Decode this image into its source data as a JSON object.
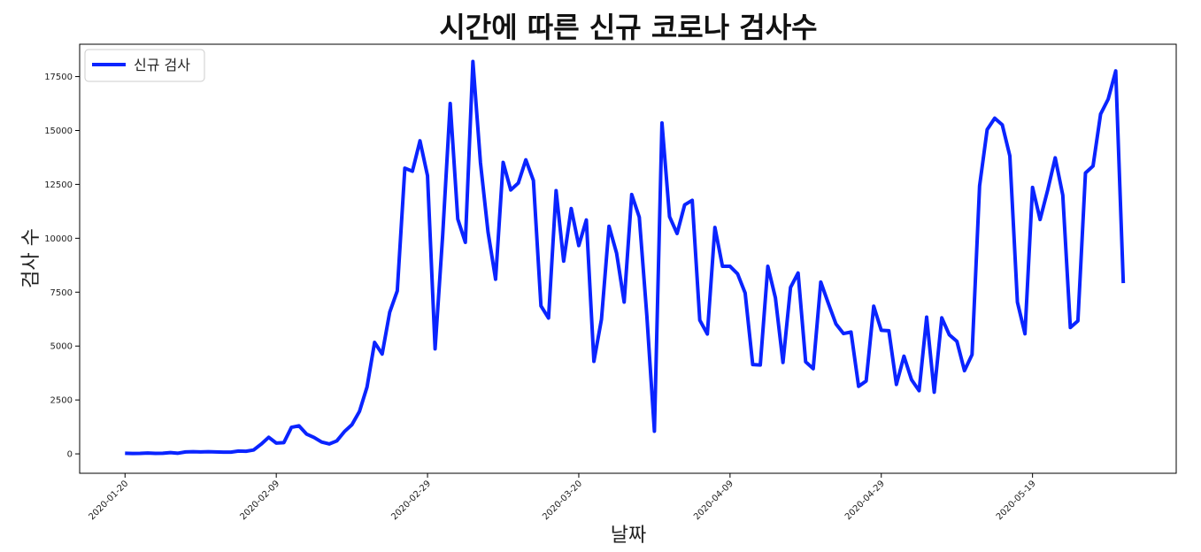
{
  "chart_data": {
    "type": "line",
    "title": "시간에 따른 신규 코로나 검사수",
    "xlabel": "날짜",
    "ylabel": "검사 수",
    "grid": false,
    "legend_position": "top-left",
    "x_start_date": "2020-01-20",
    "x_tick_labels": [
      "2020-01-20",
      "2020-02-09",
      "2020-02-29",
      "2020-03-20",
      "2020-04-09",
      "2020-04-29",
      "2020-05-19"
    ],
    "xlim": [
      "2020-01-14",
      "2020-06-07"
    ],
    "ylim": [
      -900,
      19000
    ],
    "y_ticks": [
      0,
      2500,
      5000,
      7500,
      10000,
      12500,
      15000,
      17500
    ],
    "series": [
      {
        "name": "신규 검사",
        "color": "#0a24ff",
        "values": [
          30,
          20,
          25,
          40,
          25,
          30,
          60,
          30,
          90,
          100,
          90,
          100,
          90,
          80,
          80,
          130,
          120,
          180,
          450,
          770,
          500,
          520,
          1230,
          1300,
          920,
          760,
          550,
          460,
          600,
          1030,
          1350,
          1970,
          3100,
          5170,
          4630,
          6570,
          7560,
          13250,
          13110,
          14520,
          12900,
          4870,
          10120,
          16250,
          10890,
          9810,
          18200,
          13500,
          10290,
          8100,
          13520,
          12240,
          12560,
          13640,
          12680,
          6860,
          6300,
          12210,
          8940,
          11380,
          9660,
          10850,
          4290,
          6240,
          10560,
          9310,
          7040,
          12030,
          10980,
          6410,
          1050,
          15350,
          11000,
          10220,
          11550,
          11760,
          6200,
          5560,
          10500,
          8700,
          8700,
          8350,
          7460,
          4140,
          4120,
          8700,
          7240,
          4240,
          7720,
          8390,
          4270,
          3950,
          7970,
          6980,
          6030,
          5580,
          5650,
          3130,
          3380,
          6850,
          5730,
          5710,
          3220,
          4530,
          3440,
          2930,
          6340,
          2860,
          6310,
          5520,
          5220,
          3860,
          4600,
          12430,
          15040,
          15570,
          15260,
          13820,
          7040,
          5570,
          12360,
          10870,
          12230,
          13730,
          12000,
          5860,
          6170,
          13030,
          13350,
          15760,
          16450,
          17760,
          7920
        ]
      }
    ]
  }
}
